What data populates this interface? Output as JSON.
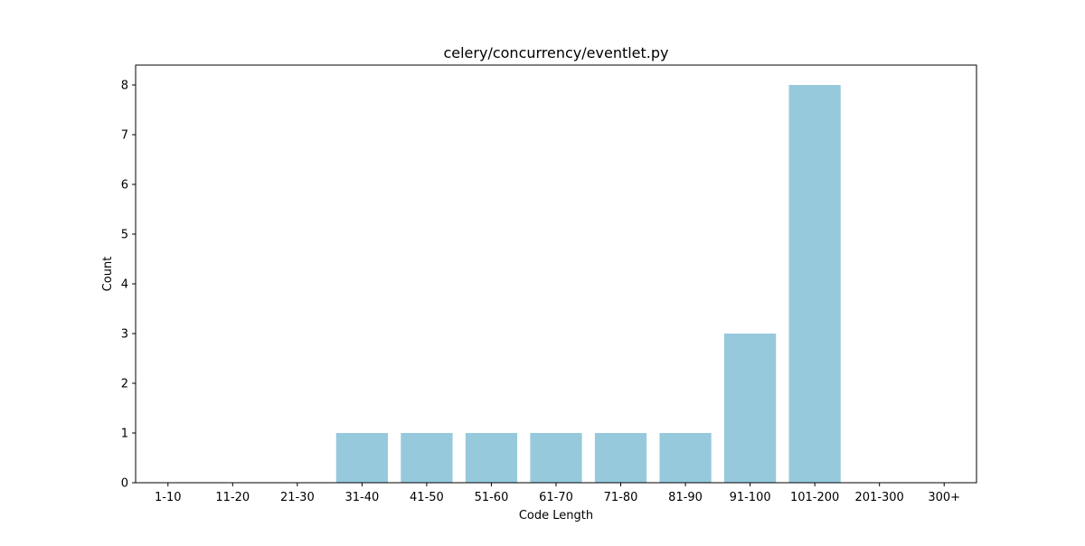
{
  "chart_data": {
    "type": "bar",
    "title": "celery/concurrency/eventlet.py",
    "xlabel": "Code Length",
    "ylabel": "Count",
    "categories": [
      "1-10",
      "11-20",
      "21-30",
      "31-40",
      "41-50",
      "51-60",
      "61-70",
      "71-80",
      "81-90",
      "91-100",
      "101-200",
      "201-300",
      "300+"
    ],
    "values": [
      0,
      0,
      0,
      1,
      1,
      1,
      1,
      1,
      1,
      3,
      8,
      0,
      0
    ],
    "ylim": [
      0,
      8.4
    ],
    "yticks": [
      0,
      1,
      2,
      3,
      4,
      5,
      6,
      7,
      8
    ],
    "bar_color": "#96c9dc",
    "grid": false,
    "legend": "none"
  }
}
